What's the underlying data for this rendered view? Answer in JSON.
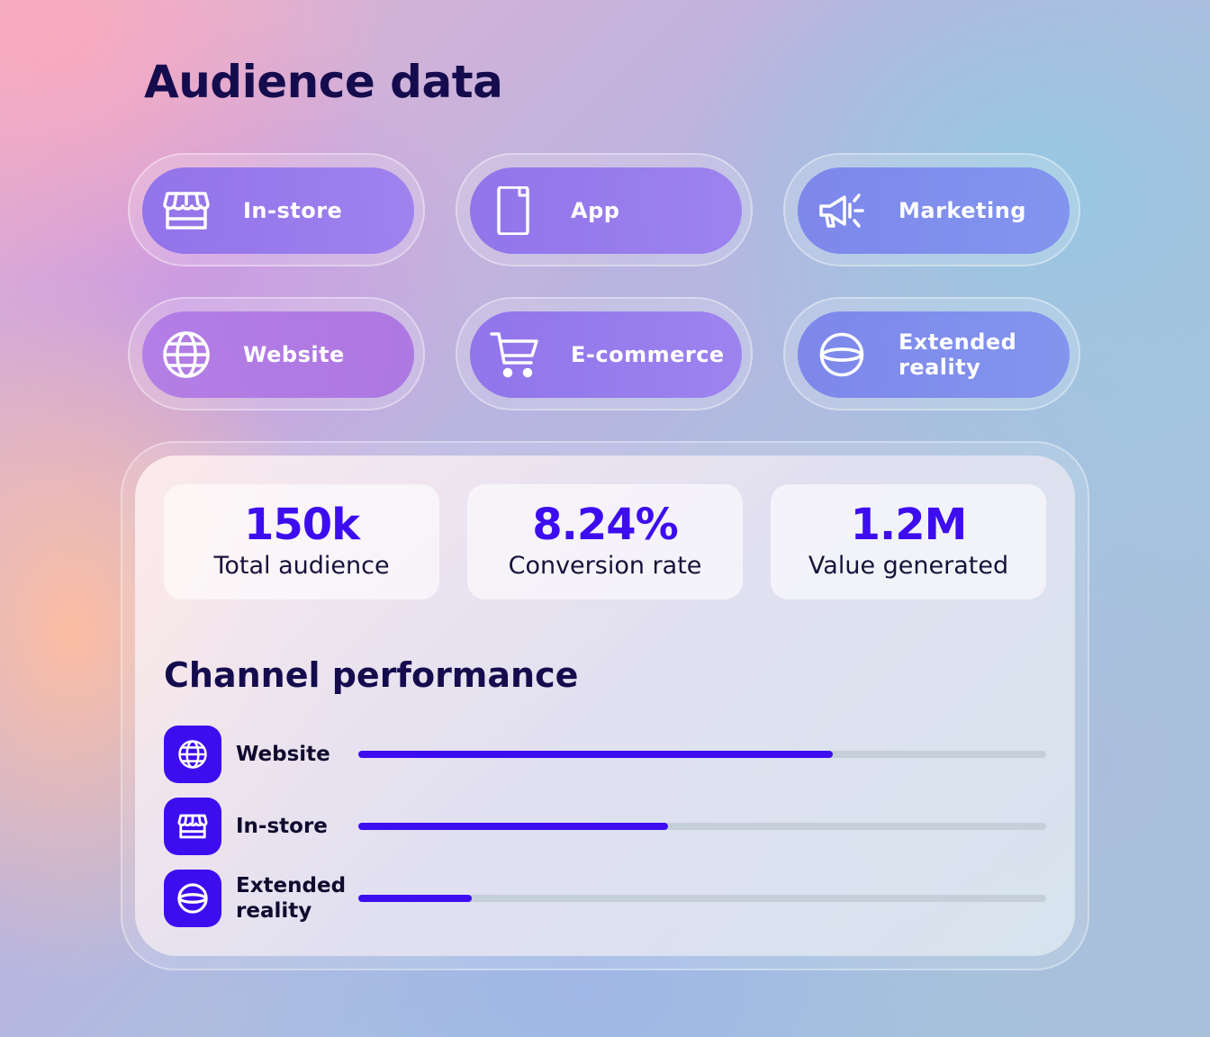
{
  "page": {
    "title": "Audience data"
  },
  "channels": [
    {
      "label": "In-store",
      "icon": "store-icon"
    },
    {
      "label": "App",
      "icon": "smartphone-icon"
    },
    {
      "label": "Marketing",
      "icon": "megaphone-icon"
    },
    {
      "label": "Website",
      "icon": "globe-icon"
    },
    {
      "label": "E-commerce",
      "icon": "shopping-cart-icon"
    },
    {
      "label": "Extended reality",
      "icon": "vr-headset-icon"
    }
  ],
  "stats": [
    {
      "value": "150k",
      "label": "Total audience"
    },
    {
      "value": "8.24%",
      "label": "Conversion rate"
    },
    {
      "value": "1.2M",
      "label": "Value generated"
    }
  ],
  "performance": {
    "title": "Channel performance",
    "rows": [
      {
        "label": "Website",
        "icon": "globe-icon",
        "progress": 0.69
      },
      {
        "label": "In-store",
        "icon": "store-icon",
        "progress": 0.45
      },
      {
        "label": "Extended reality",
        "icon": "vr-headset-icon",
        "progress": 0.165
      }
    ]
  },
  "colors": {
    "accent": "#3d0df0",
    "heading": "#150c4e",
    "track": "#c5cfd9"
  }
}
